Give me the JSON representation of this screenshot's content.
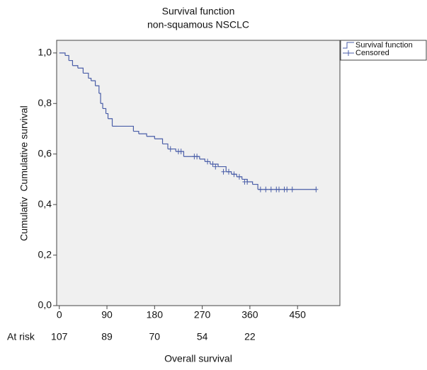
{
  "chart_data": {
    "type": "km",
    "title": "Survival function",
    "subtitle": "non-squamous NSCLC",
    "y_label": "Cumulativ  Cumulative survival",
    "x_label": "Overall survival",
    "xlim": [
      -5,
      530
    ],
    "ylim": [
      0,
      1.05
    ],
    "xticks": [
      0,
      90,
      180,
      270,
      360,
      450
    ],
    "yticks": [
      {
        "value": 0,
        "label": "0,0"
      },
      {
        "value": 0.2,
        "label": "0,2"
      },
      {
        "value": 0.4,
        "label": "0,4"
      },
      {
        "value": 0.6,
        "label": "0,6"
      },
      {
        "value": 0.8,
        "label": "0,8"
      },
      {
        "value": 1,
        "label": "1,0"
      }
    ],
    "series": [
      {
        "name": "Survival function",
        "color": "#4a5ea8",
        "x": [
          0,
          11,
          18,
          25,
          35,
          45,
          55,
          60,
          68,
          75,
          78,
          82,
          88,
          92,
          100,
          110,
          140,
          150,
          165,
          180,
          195,
          205,
          220,
          235,
          265,
          275,
          285,
          300,
          315,
          325,
          335,
          345,
          355,
          365,
          375,
          485
        ],
        "values": [
          1,
          0.99,
          0.97,
          0.95,
          0.94,
          0.92,
          0.9,
          0.89,
          0.87,
          0.84,
          0.8,
          0.78,
          0.76,
          0.74,
          0.71,
          0.71,
          0.69,
          0.68,
          0.67,
          0.66,
          0.64,
          0.62,
          0.61,
          0.59,
          0.58,
          0.57,
          0.56,
          0.55,
          0.53,
          0.52,
          0.51,
          0.5,
          0.49,
          0.48,
          0.46,
          0.46
        ]
      },
      {
        "name": "Censored",
        "color": "#4a5ea8",
        "x": [
          210,
          225,
          230,
          255,
          260,
          280,
          290,
          295,
          310,
          320,
          330,
          340,
          350,
          355,
          380,
          390,
          400,
          410,
          415,
          425,
          430,
          440,
          485
        ],
        "values": [
          0.62,
          0.61,
          0.61,
          0.59,
          0.59,
          0.57,
          0.56,
          0.55,
          0.53,
          0.53,
          0.52,
          0.51,
          0.49,
          0.49,
          0.46,
          0.46,
          0.46,
          0.46,
          0.46,
          0.46,
          0.46,
          0.46,
          0.46
        ]
      }
    ],
    "at_risk": {
      "label": "At risk",
      "values": [
        107,
        89,
        70,
        54,
        22
      ]
    }
  }
}
